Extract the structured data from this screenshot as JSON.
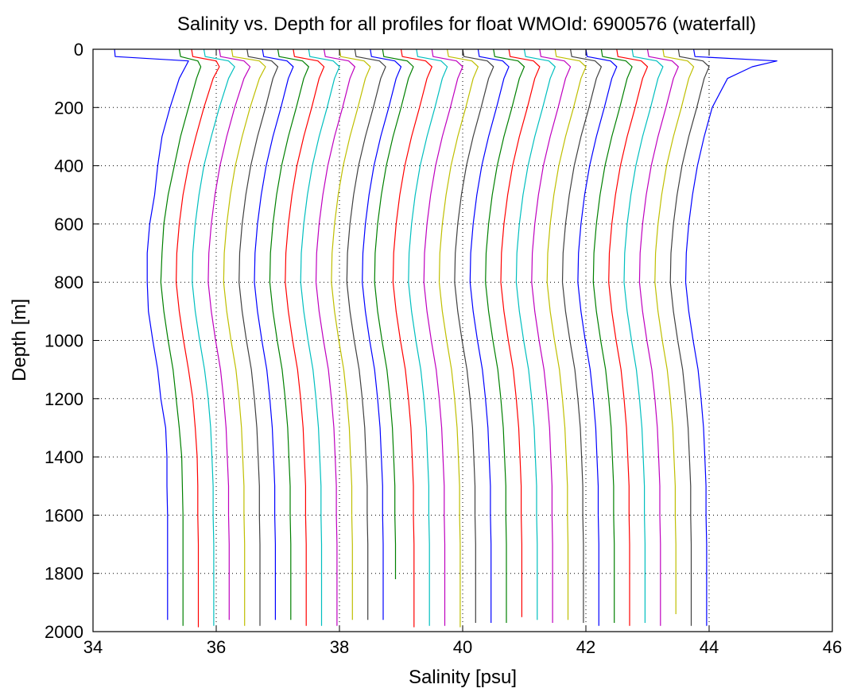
{
  "chart_data": {
    "type": "line",
    "title": "Salinity vs. Depth for all profiles for float WMOId: 6900576 (waterfall)",
    "xlabel": "Salinity [psu]",
    "ylabel": "Depth [m]",
    "xlim": [
      34,
      46
    ],
    "ylim": [
      0,
      2000
    ],
    "y_reversed": true,
    "grid": true,
    "x_ticks": [
      "34",
      "36",
      "38",
      "40",
      "42",
      "44",
      "46"
    ],
    "y_ticks": [
      "0",
      "200",
      "400",
      "600",
      "800",
      "1000",
      "1200",
      "1400",
      "1600",
      "1800",
      "2000"
    ],
    "series_colors": [
      "#0000ff",
      "#008000",
      "#ff0000",
      "#00bfbf",
      "#bf00bf",
      "#bfbf00",
      "#404040"
    ],
    "depth": [
      0,
      25,
      40,
      60,
      100,
      200,
      300,
      400,
      500,
      600,
      700,
      800,
      900,
      1000,
      1100,
      1200,
      1300,
      1400,
      1500,
      1600,
      1700,
      1800,
      1900
    ],
    "series": [
      {
        "color": "#0000ff",
        "values": [
          34.35,
          34.36,
          35.55,
          35.5,
          35.4,
          35.25,
          35.12,
          35.05,
          35.0,
          34.92,
          34.88,
          34.88,
          34.9,
          34.97,
          35.05,
          35.1,
          35.18,
          35.2,
          35.2,
          35.21,
          35.21,
          35.21,
          35.21
        ],
        "max_depth": 1960
      },
      {
        "color": "#008000",
        "values": [
          35.4,
          35.42,
          35.7,
          35.75,
          35.68,
          35.55,
          35.42,
          35.32,
          35.22,
          35.15,
          35.12,
          35.1,
          35.15,
          35.22,
          35.3,
          35.35,
          35.4,
          35.44,
          35.45,
          35.46,
          35.46,
          35.46,
          35.46
        ],
        "max_depth": 1980
      },
      {
        "color": "#ff0000",
        "values": [
          35.6,
          35.62,
          36.0,
          36.05,
          35.95,
          35.8,
          35.67,
          35.55,
          35.46,
          35.4,
          35.36,
          35.35,
          35.4,
          35.47,
          35.55,
          35.62,
          35.66,
          35.69,
          35.7,
          35.7,
          35.71,
          35.71,
          35.71
        ],
        "max_depth": 1985
      },
      {
        "color": "#00bfbf",
        "values": [
          35.8,
          35.82,
          36.2,
          36.3,
          36.2,
          36.05,
          35.92,
          35.8,
          35.72,
          35.66,
          35.62,
          35.61,
          35.66,
          35.73,
          35.81,
          35.87,
          35.91,
          35.93,
          35.95,
          35.95,
          35.96,
          35.96,
          35.96
        ],
        "max_depth": 1980
      },
      {
        "color": "#bf00bf",
        "values": [
          36.05,
          36.07,
          36.45,
          36.55,
          36.45,
          36.3,
          36.17,
          36.06,
          35.98,
          35.92,
          35.88,
          35.87,
          35.92,
          35.99,
          36.07,
          36.12,
          36.16,
          36.18,
          36.2,
          36.2,
          36.21,
          36.21,
          36.21
        ],
        "max_depth": 1960
      },
      {
        "color": "#bfbf00",
        "values": [
          36.25,
          36.27,
          36.7,
          36.8,
          36.7,
          36.55,
          36.42,
          36.31,
          36.23,
          36.17,
          36.13,
          36.12,
          36.17,
          36.24,
          36.32,
          36.37,
          36.41,
          36.43,
          36.45,
          36.45,
          36.46,
          36.46,
          36.46
        ],
        "max_depth": 1980
      },
      {
        "color": "#404040",
        "values": [
          36.5,
          36.52,
          36.9,
          37.0,
          36.92,
          36.8,
          36.67,
          36.56,
          36.48,
          36.42,
          36.38,
          36.37,
          36.42,
          36.49,
          36.57,
          36.62,
          36.66,
          36.68,
          36.7,
          36.7,
          36.71,
          36.71,
          36.71
        ],
        "max_depth": 1980
      },
      {
        "color": "#0000ff",
        "values": [
          36.75,
          36.77,
          37.15,
          37.25,
          37.17,
          37.05,
          36.92,
          36.81,
          36.73,
          36.67,
          36.63,
          36.62,
          36.67,
          36.74,
          36.82,
          36.87,
          36.91,
          36.93,
          36.95,
          36.95,
          36.96,
          36.96,
          36.96
        ],
        "max_depth": 1960
      },
      {
        "color": "#008000",
        "values": [
          37.0,
          37.02,
          37.4,
          37.5,
          37.42,
          37.3,
          37.17,
          37.06,
          36.98,
          36.92,
          36.88,
          36.87,
          36.92,
          36.99,
          37.07,
          37.12,
          37.16,
          37.18,
          37.2,
          37.2,
          37.21,
          37.21,
          37.21
        ],
        "max_depth": 1960
      },
      {
        "color": "#ff0000",
        "values": [
          37.25,
          37.27,
          37.65,
          37.75,
          37.67,
          37.55,
          37.42,
          37.31,
          37.23,
          37.17,
          37.13,
          37.12,
          37.17,
          37.24,
          37.32,
          37.37,
          37.41,
          37.43,
          37.45,
          37.45,
          37.46,
          37.46,
          37.46
        ],
        "max_depth": 1980
      },
      {
        "color": "#00bfbf",
        "values": [
          37.5,
          37.52,
          37.9,
          38.0,
          37.92,
          37.8,
          37.67,
          37.56,
          37.48,
          37.42,
          37.38,
          37.37,
          37.42,
          37.49,
          37.57,
          37.62,
          37.66,
          37.68,
          37.7,
          37.7,
          37.71,
          37.71,
          37.71
        ],
        "max_depth": 1980
      },
      {
        "color": "#bf00bf",
        "values": [
          37.75,
          37.77,
          38.15,
          38.25,
          38.17,
          38.05,
          37.92,
          37.81,
          37.73,
          37.67,
          37.63,
          37.62,
          37.67,
          37.74,
          37.82,
          37.87,
          37.91,
          37.93,
          37.95,
          37.95,
          37.96,
          37.96,
          37.96
        ],
        "max_depth": 1980
      },
      {
        "color": "#bfbf00",
        "values": [
          38.0,
          38.02,
          38.4,
          38.5,
          38.42,
          38.3,
          38.17,
          38.06,
          37.98,
          37.92,
          37.88,
          37.87,
          37.92,
          37.99,
          38.07,
          38.12,
          38.16,
          38.18,
          38.2,
          38.2,
          38.21,
          38.21,
          38.21
        ],
        "max_depth": 1960
      },
      {
        "color": "#404040",
        "values": [
          38.25,
          38.27,
          38.65,
          38.75,
          38.67,
          38.55,
          38.42,
          38.31,
          38.23,
          38.17,
          38.13,
          38.12,
          38.17,
          38.24,
          38.32,
          38.37,
          38.41,
          38.43,
          38.45,
          38.45,
          38.46,
          38.46,
          38.46
        ],
        "max_depth": 1960
      },
      {
        "color": "#0000ff",
        "values": [
          38.5,
          38.52,
          38.9,
          39.0,
          38.92,
          38.8,
          38.67,
          38.56,
          38.48,
          38.42,
          38.38,
          38.37,
          38.42,
          38.49,
          38.57,
          38.62,
          38.66,
          38.68,
          38.7,
          38.7,
          38.71,
          38.71,
          38.71
        ],
        "max_depth": 1960
      },
      {
        "color": "#008000",
        "values": [
          38.7,
          38.72,
          39.1,
          39.2,
          39.12,
          39.0,
          38.87,
          38.76,
          38.68,
          38.62,
          38.58,
          38.57,
          38.62,
          38.69,
          38.77,
          38.82,
          38.86,
          38.88,
          38.9,
          38.9,
          38.91,
          38.91,
          38.91
        ],
        "max_depth": 1820
      },
      {
        "color": "#ff0000",
        "values": [
          39.0,
          39.02,
          39.4,
          39.5,
          39.42,
          39.3,
          39.17,
          39.06,
          38.98,
          38.92,
          38.88,
          38.87,
          38.92,
          38.99,
          39.07,
          39.12,
          39.16,
          39.18,
          39.2,
          39.2,
          39.21,
          39.21,
          39.21
        ],
        "max_depth": 1985
      },
      {
        "color": "#00bfbf",
        "values": [
          39.25,
          39.27,
          39.65,
          39.75,
          39.67,
          39.55,
          39.42,
          39.31,
          39.23,
          39.17,
          39.13,
          39.12,
          39.17,
          39.24,
          39.32,
          39.37,
          39.41,
          39.43,
          39.45,
          39.45,
          39.46,
          39.46,
          39.46
        ],
        "max_depth": 1980
      },
      {
        "color": "#bf00bf",
        "values": [
          39.5,
          39.52,
          39.9,
          40.0,
          39.92,
          39.8,
          39.67,
          39.56,
          39.48,
          39.42,
          39.38,
          39.37,
          39.42,
          39.49,
          39.57,
          39.62,
          39.66,
          39.68,
          39.7,
          39.7,
          39.71,
          39.71,
          39.71
        ],
        "max_depth": 1980
      },
      {
        "color": "#bfbf00",
        "values": [
          39.75,
          39.77,
          40.15,
          40.25,
          40.17,
          40.05,
          39.92,
          39.81,
          39.73,
          39.67,
          39.63,
          39.62,
          39.67,
          39.74,
          39.82,
          39.87,
          39.91,
          39.93,
          39.95,
          39.95,
          39.96,
          39.96,
          39.96
        ],
        "max_depth": 1985
      },
      {
        "color": "#404040",
        "values": [
          40.0,
          40.02,
          40.4,
          40.5,
          40.42,
          40.3,
          40.17,
          40.06,
          39.98,
          39.92,
          39.88,
          39.87,
          39.92,
          39.99,
          40.07,
          40.12,
          40.16,
          40.18,
          40.2,
          40.2,
          40.21,
          40.21,
          40.21
        ],
        "max_depth": 1970
      },
      {
        "color": "#0000ff",
        "values": [
          40.25,
          40.27,
          40.65,
          40.75,
          40.67,
          40.55,
          40.42,
          40.31,
          40.23,
          40.17,
          40.13,
          40.12,
          40.17,
          40.24,
          40.32,
          40.37,
          40.41,
          40.43,
          40.45,
          40.45,
          40.46,
          40.46,
          40.46
        ],
        "max_depth": 1970
      },
      {
        "color": "#008000",
        "values": [
          40.5,
          40.52,
          40.9,
          41.0,
          40.92,
          40.8,
          40.67,
          40.56,
          40.48,
          40.42,
          40.38,
          40.37,
          40.42,
          40.49,
          40.57,
          40.62,
          40.66,
          40.68,
          40.7,
          40.7,
          40.71,
          40.71,
          40.71
        ],
        "max_depth": 1970
      },
      {
        "color": "#ff0000",
        "values": [
          40.75,
          40.77,
          41.15,
          41.25,
          41.17,
          41.05,
          40.92,
          40.81,
          40.73,
          40.67,
          40.63,
          40.62,
          40.67,
          40.74,
          40.82,
          40.87,
          40.91,
          40.93,
          40.95,
          40.95,
          40.96,
          40.96,
          40.96
        ],
        "max_depth": 1950
      },
      {
        "color": "#00bfbf",
        "values": [
          41.0,
          41.02,
          41.4,
          41.5,
          41.42,
          41.3,
          41.17,
          41.06,
          40.98,
          40.92,
          40.88,
          40.87,
          40.92,
          40.99,
          41.07,
          41.12,
          41.16,
          41.18,
          41.2,
          41.2,
          41.21,
          41.21,
          41.21
        ],
        "max_depth": 1960
      },
      {
        "color": "#bf00bf",
        "values": [
          41.25,
          41.27,
          41.65,
          41.75,
          41.67,
          41.55,
          41.42,
          41.31,
          41.23,
          41.17,
          41.13,
          41.12,
          41.17,
          41.24,
          41.32,
          41.37,
          41.41,
          41.43,
          41.45,
          41.45,
          41.46,
          41.46,
          41.46
        ],
        "max_depth": 1970
      },
      {
        "color": "#bfbf00",
        "values": [
          41.5,
          41.52,
          41.9,
          42.0,
          41.92,
          41.8,
          41.67,
          41.56,
          41.48,
          41.42,
          41.38,
          41.37,
          41.42,
          41.49,
          41.57,
          41.62,
          41.66,
          41.68,
          41.7,
          41.7,
          41.71,
          41.71,
          41.71
        ],
        "max_depth": 1960
      },
      {
        "color": "#404040",
        "values": [
          41.75,
          41.77,
          42.15,
          42.25,
          42.17,
          42.05,
          41.92,
          41.81,
          41.73,
          41.67,
          41.63,
          41.62,
          41.67,
          41.74,
          41.82,
          41.87,
          41.91,
          41.93,
          41.95,
          41.95,
          41.96,
          41.96,
          41.96
        ],
        "max_depth": 1970
      },
      {
        "color": "#0000ff",
        "values": [
          42.0,
          42.02,
          42.4,
          42.5,
          42.42,
          42.3,
          42.17,
          42.06,
          41.98,
          41.92,
          41.88,
          41.87,
          41.92,
          41.99,
          42.07,
          42.12,
          42.16,
          42.18,
          42.2,
          42.2,
          42.21,
          42.21,
          42.21
        ],
        "max_depth": 1980
      },
      {
        "color": "#008000",
        "values": [
          42.25,
          42.27,
          42.65,
          42.75,
          42.67,
          42.55,
          42.42,
          42.31,
          42.23,
          42.17,
          42.13,
          42.12,
          42.17,
          42.24,
          42.32,
          42.37,
          42.41,
          42.43,
          42.45,
          42.45,
          42.46,
          42.46,
          42.46
        ],
        "max_depth": 1970
      },
      {
        "color": "#ff0000",
        "values": [
          42.5,
          42.52,
          42.9,
          43.0,
          42.92,
          42.8,
          42.67,
          42.56,
          42.48,
          42.42,
          42.38,
          42.37,
          42.42,
          42.49,
          42.57,
          42.62,
          42.66,
          42.68,
          42.7,
          42.7,
          42.71,
          42.71,
          42.71
        ],
        "max_depth": 1980
      },
      {
        "color": "#00bfbf",
        "values": [
          42.75,
          42.77,
          43.15,
          43.25,
          43.17,
          43.05,
          42.92,
          42.81,
          42.73,
          42.67,
          42.63,
          42.62,
          42.67,
          42.74,
          42.82,
          42.87,
          42.91,
          42.93,
          42.95,
          42.95,
          42.96,
          42.96,
          42.96
        ],
        "max_depth": 1970
      },
      {
        "color": "#bf00bf",
        "values": [
          43.0,
          43.02,
          43.4,
          43.5,
          43.42,
          43.3,
          43.17,
          43.06,
          42.98,
          42.92,
          42.88,
          42.87,
          42.92,
          42.99,
          43.07,
          43.12,
          43.16,
          43.18,
          43.2,
          43.2,
          43.21,
          43.21,
          43.21
        ],
        "max_depth": 1980
      },
      {
        "color": "#bfbf00",
        "values": [
          43.25,
          43.27,
          43.65,
          43.75,
          43.67,
          43.55,
          43.42,
          43.31,
          43.23,
          43.17,
          43.13,
          43.12,
          43.17,
          43.24,
          43.32,
          43.37,
          43.41,
          43.43,
          43.45,
          43.45,
          43.46,
          43.46,
          43.46
        ],
        "max_depth": 1940
      },
      {
        "color": "#404040",
        "values": [
          43.5,
          43.52,
          43.9,
          44.0,
          43.92,
          43.8,
          43.67,
          43.56,
          43.48,
          43.42,
          43.38,
          43.37,
          43.42,
          43.49,
          43.57,
          43.62,
          43.66,
          43.68,
          43.7,
          43.7,
          43.71,
          43.71,
          43.71
        ],
        "max_depth": 1980
      },
      {
        "color": "#0000ff",
        "values": [
          43.75,
          43.77,
          45.1,
          44.7,
          44.3,
          44.05,
          43.92,
          43.81,
          43.73,
          43.67,
          43.63,
          43.62,
          43.67,
          43.74,
          43.82,
          43.87,
          43.91,
          43.93,
          43.95,
          43.95,
          43.96,
          43.96,
          43.96
        ],
        "max_depth": 1980
      }
    ]
  }
}
